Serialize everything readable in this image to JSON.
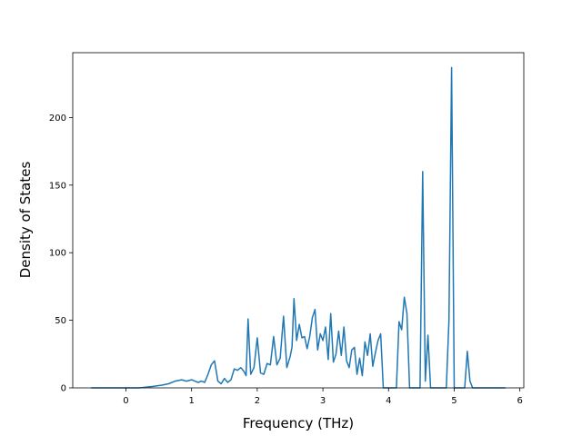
{
  "chart_data": {
    "type": "line",
    "title": "",
    "xlabel": "Frequency (THz)",
    "ylabel": "Density of States",
    "xlim": [
      -0.81,
      6.06
    ],
    "ylim": [
      0,
      248
    ],
    "xticks": [
      0,
      1,
      2,
      3,
      4,
      5,
      6
    ],
    "yticks": [
      0,
      50,
      100,
      150,
      200
    ],
    "grid": false,
    "legend": "none",
    "series": [
      {
        "color": "#1f77b4",
        "x": [
          -0.53,
          -0.4,
          -0.2,
          0.0,
          0.2,
          0.4,
          0.55,
          0.65,
          0.75,
          0.85,
          0.92,
          1.0,
          1.05,
          1.1,
          1.15,
          1.2,
          1.25,
          1.3,
          1.35,
          1.4,
          1.45,
          1.5,
          1.55,
          1.6,
          1.65,
          1.7,
          1.75,
          1.8,
          1.83,
          1.86,
          1.9,
          1.95,
          2.0,
          2.05,
          2.1,
          2.15,
          2.2,
          2.25,
          2.3,
          2.35,
          2.4,
          2.45,
          2.5,
          2.53,
          2.56,
          2.6,
          2.64,
          2.68,
          2.72,
          2.76,
          2.8,
          2.84,
          2.88,
          2.92,
          2.96,
          3.0,
          3.04,
          3.08,
          3.12,
          3.16,
          3.2,
          3.24,
          3.28,
          3.32,
          3.36,
          3.4,
          3.44,
          3.48,
          3.52,
          3.56,
          3.6,
          3.64,
          3.68,
          3.72,
          3.76,
          3.8,
          3.84,
          3.88,
          3.92,
          3.96,
          4.0,
          4.04,
          4.08,
          4.12,
          4.16,
          4.2,
          4.24,
          4.28,
          4.32,
          4.36,
          4.4,
          4.44,
          4.48,
          4.52,
          4.56,
          4.6,
          4.64,
          4.68,
          4.72,
          4.76,
          4.8,
          4.84,
          4.88,
          4.92,
          4.96,
          5.0,
          5.04,
          5.08,
          5.12,
          5.16,
          5.2,
          5.24,
          5.28,
          5.32,
          5.4,
          5.6,
          5.78
        ],
        "y": [
          0,
          0,
          0,
          0,
          0,
          1,
          2,
          3,
          5,
          6,
          5,
          6,
          5,
          4,
          5,
          4,
          10,
          17,
          20,
          5,
          3,
          7,
          4,
          6,
          14,
          13,
          15,
          12,
          9,
          51,
          10,
          15,
          37,
          11,
          10,
          18,
          17,
          38,
          17,
          22,
          53,
          15,
          23,
          30,
          66,
          35,
          47,
          37,
          38,
          29,
          38,
          52,
          58,
          28,
          40,
          35,
          45,
          21,
          55,
          19,
          25,
          42,
          24,
          45,
          20,
          15,
          28,
          30,
          10,
          22,
          9,
          34,
          24,
          40,
          16,
          26,
          35,
          40,
          0,
          0,
          0,
          0,
          0,
          0,
          49,
          43,
          67,
          55,
          0,
          0,
          0,
          0,
          0,
          160,
          5,
          39,
          0,
          0,
          0,
          0,
          0,
          0,
          0,
          50,
          237,
          0,
          0,
          0,
          0,
          0,
          27,
          5,
          0,
          0,
          0,
          0,
          0
        ]
      }
    ]
  }
}
